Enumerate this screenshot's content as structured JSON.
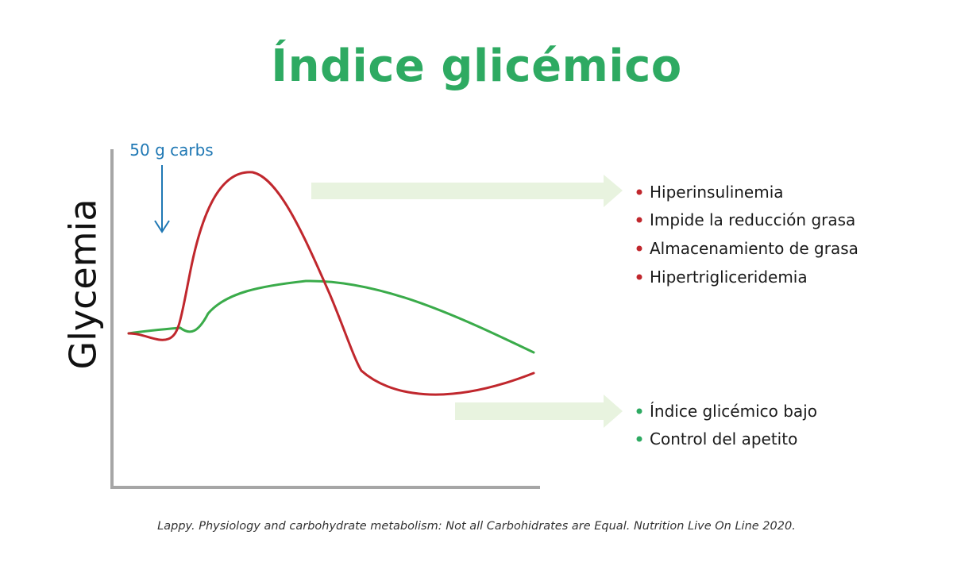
{
  "title": "Índice glicémico",
  "y_axis_label": "Glycemia",
  "annotation": "50 g carbs",
  "high_gi_effects": [
    "Hiperinsulinemia",
    "Impide la reducción grasa",
    "Almacenamiento de grasa",
    "Hipertrigliceridemia"
  ],
  "low_gi_effects": [
    "Índice glicémico bajo",
    "Control del apetito"
  ],
  "citation": "Lappy. Physiology and carbohydrate metabolism: Not all Carbohidrates are Equal. Nutrition Live On Line 2020.",
  "colors": {
    "title": "#2eaa62",
    "high_gi_curve": "#c0272d",
    "low_gi_curve": "#3aab4a",
    "annotation": "#1f78b4",
    "arrow_fill": "#e8f3df",
    "axis": "#a6a6a6",
    "bullet_red": "#c0272d",
    "bullet_green": "#2eaa62"
  }
}
